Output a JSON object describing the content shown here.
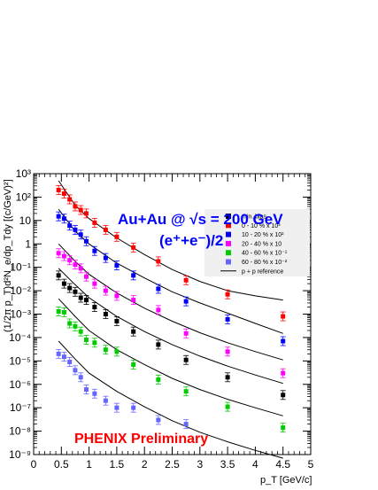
{
  "chart_data": {
    "type": "scatter",
    "title": "Au+Au @ √s = 200 GeV",
    "subtitle": "(e⁺+e⁻)/2",
    "xlabel": "p_T [GeV/c]",
    "ylabel": "(1/2π p_T)d²N_e/dp_Tdy [(c/GeV)²]",
    "annotation": "PHENIX Preliminary",
    "xlim": [
      0,
      5
    ],
    "ylim_log10": [
      -9,
      3
    ],
    "y_scale": "log",
    "x_ticks": [
      "0",
      "0.5",
      "1",
      "1.5",
      "2",
      "2.5",
      "3",
      "3.5",
      "4",
      "4.5",
      "5"
    ],
    "y_ticks": [
      "10⁻⁹",
      "10⁻⁸",
      "10⁻⁷",
      "10⁻⁶",
      "10⁻⁵",
      "10⁻⁴",
      "10⁻³",
      "10⁻²",
      "10⁻¹",
      "1",
      "10",
      "10²",
      "10³"
    ],
    "legend_position": "top-right",
    "series": [
      {
        "name": "min. bias",
        "color": "#000000",
        "x": [
          0.45,
          0.55,
          0.65,
          0.75,
          0.85,
          0.95,
          1.1,
          1.3,
          1.5,
          1.8,
          2.25,
          2.75,
          3.5,
          4.5
        ],
        "y": [
          0.045,
          0.02,
          0.013,
          0.009,
          0.005,
          0.004,
          0.002,
          0.001,
          0.0005,
          0.00018,
          5e-05,
          1.1e-05,
          2e-06,
          3.5e-07
        ]
      },
      {
        "name": "0 - 10 % x 10³",
        "color": "#ff0000",
        "x": [
          0.45,
          0.55,
          0.65,
          0.75,
          0.85,
          0.95,
          1.1,
          1.3,
          1.5,
          1.8,
          2.25,
          2.75,
          3.5,
          4.5
        ],
        "y": [
          200,
          140,
          80,
          40,
          28,
          20,
          8,
          4,
          2,
          0.7,
          0.18,
          0.028,
          0.007,
          0.0008
        ]
      },
      {
        "name": "10 - 20 % x 10²",
        "color": "#0000ff",
        "x": [
          0.45,
          0.55,
          0.65,
          0.75,
          0.85,
          0.95,
          1.1,
          1.3,
          1.5,
          1.8,
          2.25,
          2.75,
          3.5,
          4.5
        ],
        "y": [
          15,
          12,
          6,
          4,
          2.5,
          1.3,
          0.5,
          0.25,
          0.12,
          0.045,
          0.012,
          0.0035,
          0.0006,
          7e-05
        ]
      },
      {
        "name": "20 - 40 % x 10",
        "color": "#ff00ff",
        "x": [
          0.45,
          0.55,
          0.65,
          0.75,
          0.85,
          0.95,
          1.1,
          1.3,
          1.5,
          1.8,
          2.25,
          2.75,
          3.5,
          4.5
        ],
        "y": [
          0.4,
          0.3,
          0.2,
          0.13,
          0.09,
          0.04,
          0.02,
          0.01,
          0.006,
          0.004,
          0.0015,
          0.00015,
          2.5e-05,
          3e-06
        ]
      },
      {
        "name": "40 - 60 % x 10⁻¹",
        "color": "#00cc00",
        "x": [
          0.45,
          0.55,
          0.65,
          0.75,
          0.85,
          0.95,
          1.1,
          1.3,
          1.5,
          1.8,
          2.25,
          2.75,
          3.5,
          4.5
        ],
        "y": [
          0.0013,
          0.0012,
          0.0004,
          0.0003,
          0.00018,
          8e-05,
          6e-05,
          3e-05,
          2.5e-05,
          7e-06,
          1.6e-06,
          5e-07,
          1.1e-07,
          1.4e-08
        ]
      },
      {
        "name": "60 - 80 % x 10⁻²",
        "color": "#6666ff",
        "x": [
          0.45,
          0.55,
          0.65,
          0.75,
          0.85,
          0.95,
          1.1,
          1.3,
          1.5,
          1.8,
          2.25,
          2.75
        ],
        "y": [
          2e-05,
          1.5e-05,
          9e-06,
          4e-06,
          2e-06,
          6e-07,
          4e-07,
          2e-07,
          1e-07,
          1e-07,
          3e-08,
          2e-08
        ]
      }
    ],
    "reference": {
      "name": "p + p reference",
      "color": "#000000",
      "curves": [
        {
          "x": [
            0.45,
            0.75,
            1.0,
            1.5,
            2.0,
            2.5,
            3.0,
            3.5,
            4.0,
            4.5
          ],
          "y": [
            500,
            45,
            12,
            1.8,
            0.35,
            0.08,
            0.025,
            0.01,
            0.006,
            0.004
          ]
        },
        {
          "x": [
            0.45,
            0.75,
            1.0,
            1.5,
            2.0,
            2.5,
            3.0,
            3.5,
            4.0,
            4.5
          ],
          "y": [
            30,
            3.5,
            1.0,
            0.15,
            0.035,
            0.009,
            0.003,
            0.0011,
            0.0004,
            0.00015
          ]
        },
        {
          "x": [
            0.45,
            0.75,
            1.0,
            1.5,
            2.0,
            2.5,
            3.0,
            3.5,
            4.0,
            4.5
          ],
          "y": [
            1.0,
            0.18,
            0.05,
            0.008,
            0.0018,
            0.0005,
            0.00016,
            6e-05,
            2.5e-05,
            1.1e-05
          ]
        },
        {
          "x": [
            0.45,
            0.75,
            1.0,
            1.5,
            2.0,
            2.5,
            3.0,
            3.5,
            4.0,
            4.5
          ],
          "y": [
            0.09,
            0.018,
            0.005,
            0.0008,
            0.00018,
            5e-05,
            1.6e-05,
            6e-06,
            2.5e-06,
            1.1e-06
          ]
        },
        {
          "x": [
            0.45,
            0.75,
            1.0,
            1.5,
            2.0,
            2.5,
            3.0,
            3.5,
            4.0,
            4.5
          ],
          "y": [
            0.0045,
            0.0008,
            0.0002,
            3e-05,
            7e-06,
            1.8e-06,
            6e-07,
            2.3e-07,
            1e-07,
            4.5e-08
          ]
        },
        {
          "x": [
            0.45,
            0.75,
            1.0,
            1.5,
            2.0,
            2.5,
            3.0,
            3.5,
            4.0,
            4.5
          ],
          "y": [
            7e-05,
            1.2e-05,
            3e-06,
            5e-07,
            1.1e-07,
            2.8e-08,
            9e-09,
            3.5e-09,
            1.5e-09,
            7e-10
          ]
        }
      ]
    }
  }
}
